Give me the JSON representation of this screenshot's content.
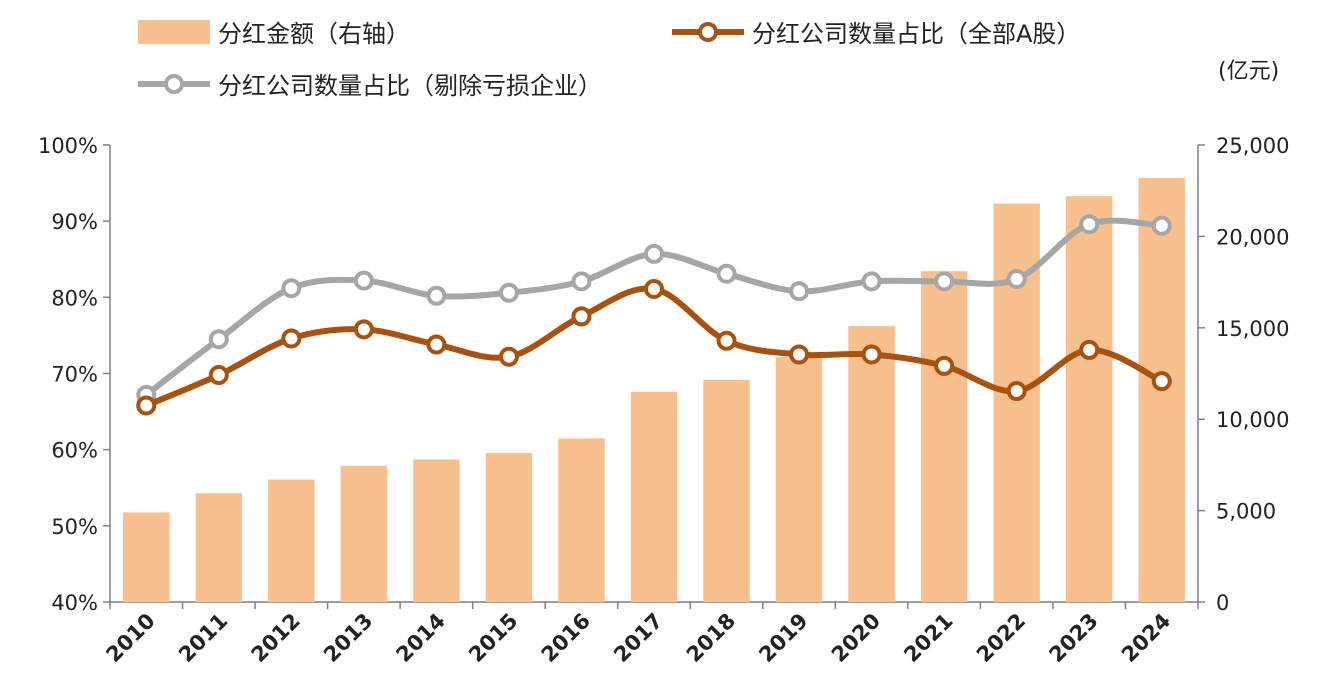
{
  "chart_data": {
    "type": "bar",
    "categories": [
      "2010",
      "2011",
      "2012",
      "2013",
      "2014",
      "2015",
      "2016",
      "2017",
      "2018",
      "2019",
      "2020",
      "2021",
      "2022",
      "2023",
      "2024"
    ],
    "bars": {
      "name": "分红金额（右轴）",
      "axis": "right",
      "color": "#F8C08F",
      "values": [
        4900,
        5950,
        6700,
        7450,
        7800,
        8150,
        8950,
        11500,
        12150,
        13400,
        15100,
        18100,
        21800,
        22200,
        23200
      ]
    },
    "lines": [
      {
        "name": "分红公司数量占比（全部A股）",
        "axis": "left",
        "color": "#A9510F",
        "values": [
          0.658,
          0.698,
          0.746,
          0.758,
          0.738,
          0.722,
          0.775,
          0.811,
          0.743,
          0.725,
          0.725,
          0.71,
          0.677,
          0.731,
          0.69
        ]
      },
      {
        "name": "分红公司数量占比（剔除亏损企业）",
        "axis": "left",
        "color": "#A6A6A6",
        "values": [
          0.672,
          0.745,
          0.812,
          0.822,
          0.802,
          0.806,
          0.821,
          0.857,
          0.831,
          0.808,
          0.821,
          0.821,
          0.824,
          0.896,
          0.894
        ]
      }
    ],
    "y_left": {
      "min": 0.4,
      "max": 1.0,
      "ticks": [
        "40%",
        "50%",
        "60%",
        "70%",
        "80%",
        "90%",
        "100%"
      ]
    },
    "y_right": {
      "min": 0,
      "max": 25000,
      "ticks": [
        "0",
        "5,000",
        "10,000",
        "15,000",
        "20,000",
        "25,000"
      ],
      "unit_label": "(亿元)"
    },
    "grid": false,
    "legend_position": "top"
  }
}
